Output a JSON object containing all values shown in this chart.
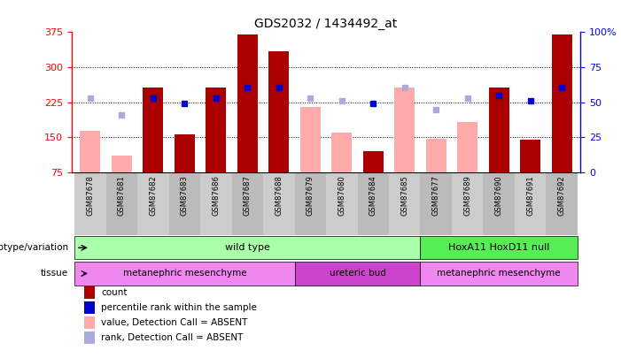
{
  "title": "GDS2032 / 1434492_at",
  "samples": [
    "GSM87678",
    "GSM87681",
    "GSM87682",
    "GSM87683",
    "GSM87686",
    "GSM87687",
    "GSM87688",
    "GSM87679",
    "GSM87680",
    "GSM87684",
    "GSM87685",
    "GSM87677",
    "GSM87689",
    "GSM87690",
    "GSM87691",
    "GSM87692"
  ],
  "count": [
    null,
    null,
    257,
    157,
    257,
    370,
    335,
    null,
    null,
    120,
    null,
    null,
    null,
    257,
    145,
    370
  ],
  "count_absent": [
    163,
    110,
    null,
    null,
    null,
    null,
    null,
    215,
    160,
    null,
    257,
    147,
    183,
    null,
    null,
    null
  ],
  "rank_present": [
    null,
    null,
    233,
    222,
    233,
    257,
    257,
    null,
    null,
    222,
    null,
    null,
    null,
    240,
    228,
    257
  ],
  "rank_absent": [
    234,
    198,
    null,
    null,
    null,
    null,
    null,
    234,
    228,
    null,
    257,
    210,
    234,
    null,
    null,
    null
  ],
  "ylim": [
    75,
    375
  ],
  "yticks_left": [
    75,
    150,
    225,
    300,
    375
  ],
  "yticks_right": [
    0,
    25,
    50,
    75,
    100
  ],
  "bar_color_present": "#aa0000",
  "bar_color_absent": "#ffaaaa",
  "rank_color_present": "#0000cc",
  "rank_color_absent": "#aaaadd",
  "bg_color": "#ffffff",
  "plot_bg": "#ffffff",
  "genotype_groups": [
    {
      "label": "wild type",
      "start": 0,
      "end": 10,
      "color": "#aaffaa"
    },
    {
      "label": "HoxA11 HoxD11 null",
      "start": 11,
      "end": 15,
      "color": "#55ee55"
    }
  ],
  "tissue_groups": [
    {
      "label": "metanephric mesenchyme",
      "start": 0,
      "end": 6,
      "color": "#ee88ee"
    },
    {
      "label": "ureteric bud",
      "start": 7,
      "end": 10,
      "color": "#cc44cc"
    },
    {
      "label": "metanephric mesenchyme",
      "start": 11,
      "end": 15,
      "color": "#ee88ee"
    }
  ],
  "legend_items": [
    {
      "label": "count",
      "color": "#aa0000"
    },
    {
      "label": "percentile rank within the sample",
      "color": "#0000cc"
    },
    {
      "label": "value, Detection Call = ABSENT",
      "color": "#ffaaaa"
    },
    {
      "label": "rank, Detection Call = ABSENT",
      "color": "#aaaadd"
    }
  ],
  "col_bg_even": "#dddddd",
  "col_bg_odd": "#cccccc"
}
